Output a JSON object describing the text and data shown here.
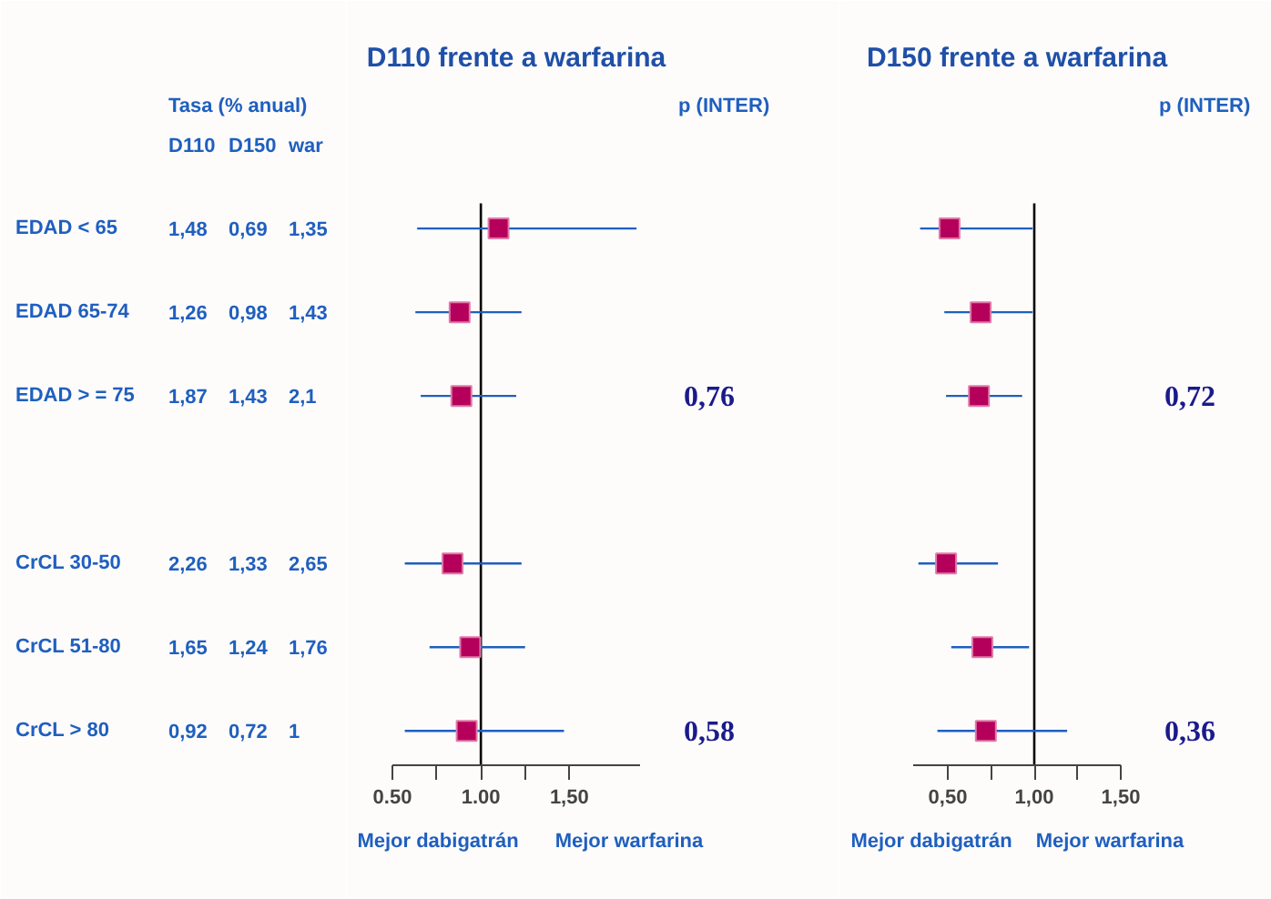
{
  "chart_data": [
    {
      "type": "other",
      "title": "Tasa (% anual)",
      "color": "#1f5fbf",
      "categories": [
        "EDAD < 65",
        "EDAD 65-74",
        "EDAD > = 75",
        null,
        "CrCL 30-50",
        "CrCL 51-80",
        "CrCL > 80"
      ],
      "series": [
        {
          "name": "D110",
          "values": [
            1.48,
            1.26,
            1.87,
            null,
            2.26,
            1.65,
            0.92
          ],
          "value_labels": [
            "1,48",
            "1,26",
            "1,87",
            null,
            "2,26",
            "1,65",
            "0,92"
          ]
        },
        {
          "name": "D150",
          "values": [
            0.69,
            0.98,
            1.43,
            null,
            1.33,
            1.24,
            0.72
          ],
          "value_labels": [
            "0,69",
            "0,98",
            "1,43",
            null,
            "1,33",
            "1,24",
            "0,72"
          ]
        },
        {
          "name": "war",
          "values": [
            1.35,
            1.43,
            2.1,
            null,
            2.65,
            1.76,
            1
          ],
          "value_labels": [
            "1,35",
            "1,43",
            "2,1",
            null,
            "2,65",
            "1,76",
            "1"
          ]
        }
      ]
    },
    {
      "type": "scatter",
      "orientation": "horizontal",
      "title": "D110 frente a warfarina",
      "tick_labels": "x",
      "values": [
        1.1,
        0.88,
        0.89,
        null,
        0.84,
        0.94,
        0.92
      ],
      "errors": [
        [
          0.64,
          1.88
        ],
        [
          0.63,
          1.23
        ],
        [
          0.66,
          1.2
        ],
        null,
        [
          0.57,
          1.23
        ],
        [
          0.71,
          1.25
        ],
        [
          0.57,
          1.47
        ]
      ],
      "color": "#b5005b",
      "marker": "square",
      "grid": false,
      "xlim": [
        0.5,
        1.9
      ],
      "xticks": [
        {
          "value": 0.5,
          "label": "0.50"
        },
        {
          "value": 0.75,
          "label": null
        },
        {
          "value": 1.0,
          "label": "1.00"
        },
        {
          "value": 1.25,
          "label": null
        },
        {
          "value": 1.5,
          "label": "1,50"
        }
      ],
      "ref_lines": [
        {
          "axis": "x",
          "value": 1,
          "color": "#000000"
        }
      ],
      "annotations": [
        "p (INTER)",
        "0,76",
        "0,58",
        "Mejor dabigatrán",
        "Mejor warfarina"
      ]
    },
    {
      "type": "scatter",
      "orientation": "horizontal",
      "title": "D150 frente a warfarina",
      "tick_labels": "x",
      "values": [
        0.51,
        0.69,
        0.68,
        null,
        0.49,
        0.7,
        0.72
      ],
      "errors": [
        [
          0.34,
          0.99
        ],
        [
          0.48,
          0.99
        ],
        [
          0.49,
          0.93
        ],
        null,
        [
          0.33,
          0.79
        ],
        [
          0.52,
          0.97
        ],
        [
          0.44,
          1.19
        ]
      ],
      "color": "#b5005b",
      "marker": "square",
      "grid": false,
      "xlim": [
        0.3,
        1.5
      ],
      "xticks": [
        {
          "value": 0.5,
          "label": "0,50"
        },
        {
          "value": 0.75,
          "label": null
        },
        {
          "value": 1.0,
          "label": "1,00"
        },
        {
          "value": 1.25,
          "label": null
        },
        {
          "value": 1.5,
          "label": "1,50"
        }
      ],
      "ref_lines": [
        {
          "axis": "x",
          "value": 1,
          "color": "#000000"
        }
      ],
      "annotations": [
        "p (INTER)",
        "0,72",
        "0,36",
        "Mejor dabigatrán",
        "Mejor warfarina"
      ]
    }
  ]
}
